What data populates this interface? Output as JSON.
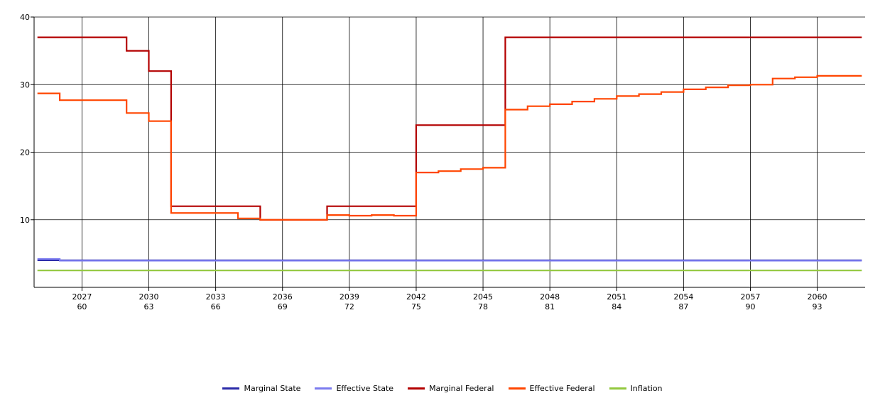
{
  "chart_data": {
    "type": "line",
    "step": true,
    "grid": true,
    "legend_position": "bottom",
    "ylim": [
      0,
      40
    ],
    "y_ticks": [
      {
        "value": 10,
        "label": "10"
      },
      {
        "value": 20,
        "label": "20"
      },
      {
        "value": 30,
        "label": "30"
      },
      {
        "value": 40,
        "label": "40"
      }
    ],
    "xlim": [
      2024.85,
      2062.15
    ],
    "x_ticks": [
      {
        "value": 2027,
        "year": "2027",
        "age": "60"
      },
      {
        "value": 2030,
        "year": "2030",
        "age": "63"
      },
      {
        "value": 2033,
        "year": "2033",
        "age": "66"
      },
      {
        "value": 2036,
        "year": "2036",
        "age": "69"
      },
      {
        "value": 2039,
        "year": "2039",
        "age": "72"
      },
      {
        "value": 2042,
        "year": "2042",
        "age": "75"
      },
      {
        "value": 2045,
        "year": "2045",
        "age": "78"
      },
      {
        "value": 2048,
        "year": "2048",
        "age": "81"
      },
      {
        "value": 2051,
        "year": "2051",
        "age": "84"
      },
      {
        "value": 2054,
        "year": "2054",
        "age": "87"
      },
      {
        "value": 2057,
        "year": "2057",
        "age": "90"
      },
      {
        "value": 2060,
        "year": "2060",
        "age": "93"
      }
    ],
    "x_years": [
      2025,
      2026,
      2027,
      2028,
      2029,
      2030,
      2031,
      2032,
      2033,
      2034,
      2035,
      2036,
      2037,
      2038,
      2039,
      2040,
      2041,
      2042,
      2043,
      2044,
      2045,
      2046,
      2047,
      2048,
      2049,
      2050,
      2051,
      2052,
      2053,
      2054,
      2055,
      2056,
      2057,
      2058,
      2059,
      2060,
      2061
    ],
    "series": [
      {
        "name": "Marginal State",
        "color": "#2a2aa8",
        "values": [
          4.0,
          4.0,
          4.0,
          4.0,
          4.0,
          4.0,
          4.0,
          4.0,
          4.0,
          4.0,
          4.0,
          4.0,
          4.0,
          4.0,
          4.0,
          4.0,
          4.0,
          4.0,
          4.0,
          4.0,
          4.0,
          4.0,
          4.0,
          4.0,
          4.0,
          4.0,
          4.0,
          4.0,
          4.0,
          4.0,
          4.0,
          4.0,
          4.0,
          4.0,
          4.0,
          4.0,
          4.0
        ]
      },
      {
        "name": "Effective State",
        "color": "#7b7bef",
        "values": [
          4.2,
          3.95,
          3.95,
          3.95,
          3.95,
          3.95,
          3.95,
          3.95,
          3.95,
          3.95,
          3.95,
          3.95,
          3.95,
          3.95,
          3.95,
          3.95,
          3.95,
          3.95,
          3.95,
          3.95,
          3.95,
          3.95,
          3.95,
          3.95,
          3.95,
          3.95,
          3.95,
          3.95,
          3.95,
          3.95,
          3.95,
          3.95,
          3.95,
          3.95,
          3.95,
          3.95,
          3.95
        ]
      },
      {
        "name": "Marginal Federal",
        "color": "#b30000",
        "values": [
          37,
          37,
          37,
          37,
          35,
          32,
          12,
          12,
          12,
          12,
          10,
          10,
          10,
          12,
          12,
          12,
          12,
          24,
          24,
          24,
          24,
          37,
          37,
          37,
          37,
          37,
          37,
          37,
          37,
          37,
          37,
          37,
          37,
          37,
          37,
          37,
          37
        ]
      },
      {
        "name": "Effective Federal",
        "color": "#ff4500",
        "values": [
          28.7,
          27.7,
          27.7,
          27.7,
          25.8,
          24.6,
          11.0,
          11.0,
          11.0,
          10.2,
          10.0,
          10.0,
          10.0,
          10.7,
          10.6,
          10.7,
          10.6,
          17.0,
          17.2,
          17.5,
          17.7,
          26.3,
          26.8,
          27.1,
          27.5,
          27.9,
          28.3,
          28.6,
          28.9,
          29.3,
          29.6,
          29.9,
          30.0,
          30.9,
          31.1,
          31.3,
          31.3
        ]
      },
      {
        "name": "Inflation",
        "color": "#92c83e",
        "values": [
          2.5,
          2.5,
          2.5,
          2.5,
          2.5,
          2.5,
          2.5,
          2.5,
          2.5,
          2.5,
          2.5,
          2.5,
          2.5,
          2.5,
          2.5,
          2.5,
          2.5,
          2.5,
          2.5,
          2.5,
          2.5,
          2.5,
          2.5,
          2.5,
          2.5,
          2.5,
          2.5,
          2.5,
          2.5,
          2.5,
          2.5,
          2.5,
          2.5,
          2.5,
          2.5,
          2.5,
          2.5
        ]
      }
    ]
  }
}
